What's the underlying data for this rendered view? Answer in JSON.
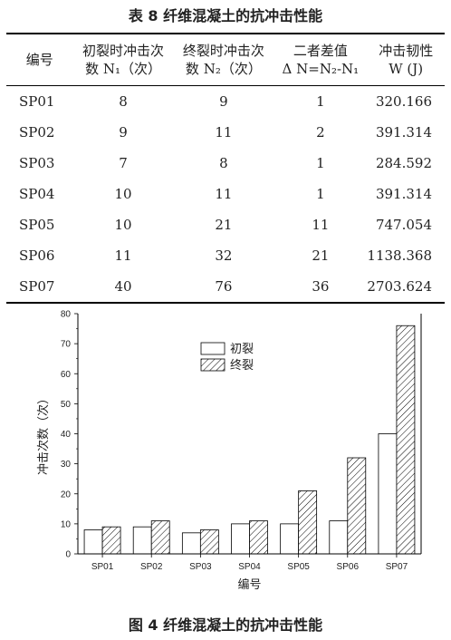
{
  "table_title": "表 8   纤维混凝土的抗冲击性能",
  "table": {
    "headers": [
      [
        "编号"
      ],
      [
        "初裂时冲击次",
        "数 N₁（次）"
      ],
      [
        "终裂时冲击次",
        "数 N₂（次）"
      ],
      [
        "二者差值",
        "Δ N=N₂-N₁"
      ],
      [
        "冲击韧性",
        "W (J)"
      ]
    ],
    "rows": [
      [
        "SP01",
        "8",
        "9",
        "1",
        "320.166"
      ],
      [
        "SP02",
        "9",
        "11",
        "2",
        "391.314"
      ],
      [
        "SP03",
        "7",
        "8",
        "1",
        "284.592"
      ],
      [
        "SP04",
        "10",
        "11",
        "1",
        "391.314"
      ],
      [
        "SP05",
        "10",
        "21",
        "11",
        "747.054"
      ],
      [
        "SP06",
        "11",
        "32",
        "21",
        "1138.368"
      ],
      [
        "SP07",
        "40",
        "76",
        "36",
        "2703.624"
      ]
    ]
  },
  "chart_data": {
    "type": "bar",
    "categories": [
      "SP01",
      "SP02",
      "SP03",
      "SP04",
      "SP05",
      "SP06",
      "SP07"
    ],
    "series": [
      {
        "name": "初裂",
        "values": [
          8,
          9,
          7,
          10,
          10,
          11,
          40
        ],
        "pattern": "solid-white"
      },
      {
        "name": "终裂",
        "values": [
          9,
          11,
          8,
          11,
          21,
          32,
          76
        ],
        "pattern": "diagonal-hatch"
      }
    ],
    "xlabel": "编号",
    "ylabel": "冲击次数（次）",
    "ylim": [
      0,
      80
    ],
    "yticks": [
      0,
      10,
      20,
      30,
      40,
      50,
      60,
      70,
      80
    ],
    "legend_position": "upper-middle",
    "grid": false
  },
  "figure_title": "图 4   纤维混凝土的抗冲击性能",
  "colors": {
    "bar_edge": "#000000",
    "hatch": "#000000",
    "fill": "#ffffff"
  }
}
